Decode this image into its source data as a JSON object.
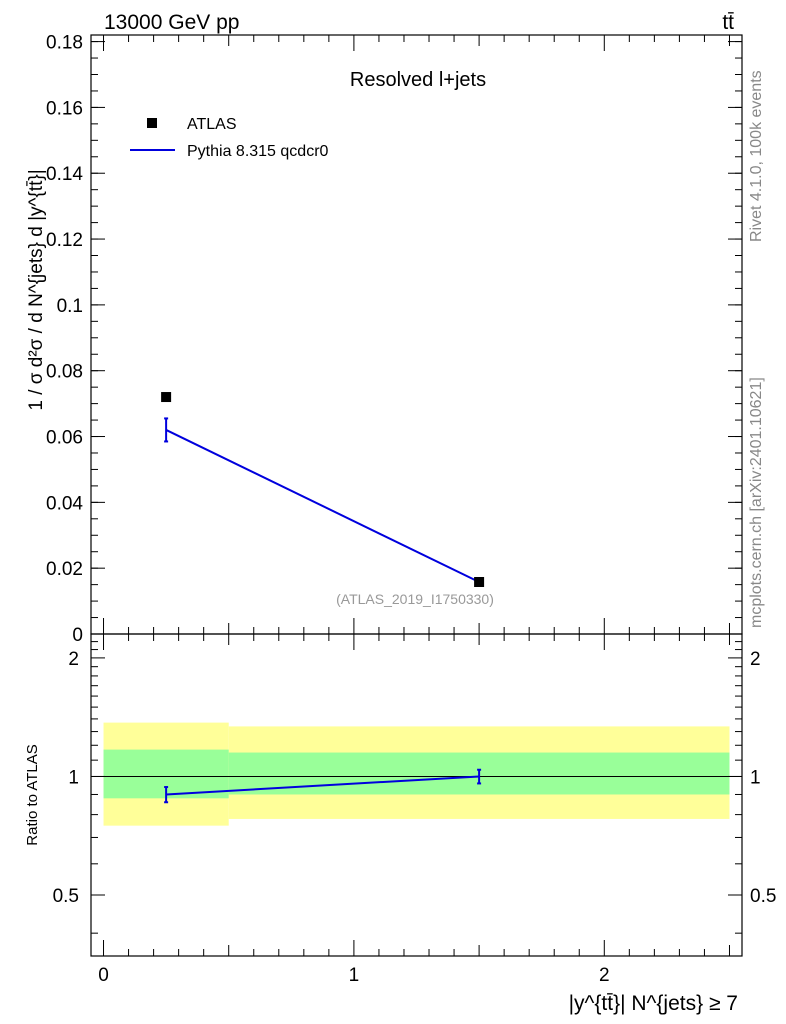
{
  "header": {
    "energy_label": "13000 GeV pp",
    "process_label": "tt̄"
  },
  "side_labels": {
    "rivet": "Rivet 4.1.0,  100k events",
    "source": "mcplots.cern.ch [arXiv:2401.10621]"
  },
  "chart_data": [
    {
      "type": "scatter",
      "panel": "main",
      "title": "Resolved l+jets",
      "watermark": "(ATLAS_2019_I1750330)",
      "ylabel": "1 / σ d²σ / d N^{jets} d |y^{tt̄}|",
      "xlim": [
        -0.05,
        2.55
      ],
      "ylim": [
        0,
        0.182
      ],
      "yticks": [
        0,
        0.02,
        0.04,
        0.06,
        0.08,
        0.1,
        0.12,
        0.14,
        0.16,
        0.18
      ],
      "ytick_labels": [
        "0",
        "0.02",
        "0.04",
        "0.06",
        "0.08",
        "0.1",
        "0.12",
        "0.14",
        "0.16",
        "0.18"
      ],
      "legend_position": "upper-left",
      "series": [
        {
          "name": "ATLAS",
          "style": "markers",
          "color": "#000000",
          "x": [
            0.25,
            1.5
          ],
          "y": [
            0.072,
            0.0158
          ]
        },
        {
          "name": "Pythia 8.315 qcdcr0",
          "style": "line",
          "color": "#0000dd",
          "x": [
            0.25,
            1.5
          ],
          "y": [
            0.062,
            0.0158
          ],
          "err": [
            0.0035,
            0.0006
          ]
        }
      ]
    },
    {
      "type": "line",
      "panel": "ratio",
      "ylabel": "Ratio to ATLAS",
      "xlabel": "|y^{tt̄}| N^{jets} ≥ 7",
      "xlim": [
        -0.05,
        2.55
      ],
      "ylim": [
        0.35,
        2.3
      ],
      "xticks": [
        0,
        1,
        2
      ],
      "xtick_labels": [
        "0",
        "1",
        "2"
      ],
      "yticks": [
        0.5,
        1,
        2
      ],
      "ytick_labels": [
        "0.5",
        "1",
        "2"
      ],
      "bands": [
        {
          "name": "yellow",
          "color": "#ffff99",
          "bins": [
            {
              "x0": 0.0,
              "x1": 0.5,
              "lo": 0.75,
              "hi": 1.37
            },
            {
              "x0": 0.5,
              "x1": 2.5,
              "lo": 0.78,
              "hi": 1.34
            }
          ]
        },
        {
          "name": "green",
          "color": "#99ff99",
          "bins": [
            {
              "x0": 0.0,
              "x1": 0.5,
              "lo": 0.88,
              "hi": 1.17
            },
            {
              "x0": 0.5,
              "x1": 2.5,
              "lo": 0.9,
              "hi": 1.15
            }
          ]
        }
      ],
      "series": [
        {
          "name": "Pythia 8.315 qcdcr0",
          "color": "#0000dd",
          "x": [
            0.25,
            1.5
          ],
          "y": [
            0.9,
            1.0
          ],
          "err": [
            0.04,
            0.04
          ]
        }
      ]
    }
  ]
}
